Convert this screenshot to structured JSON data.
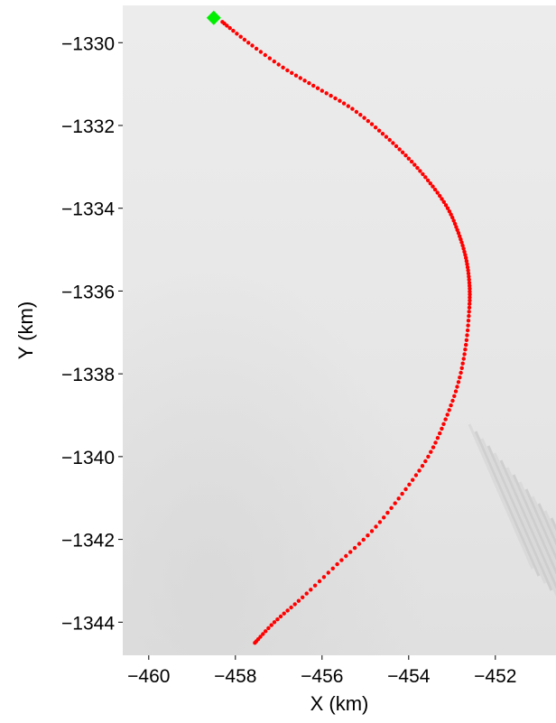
{
  "chart_data": {
    "type": "scatter",
    "xlabel": "X (km)",
    "ylabel": "Y (km)",
    "xlim": [
      -460.6,
      -450.6
    ],
    "ylim": [
      -1344.8,
      -1329.1
    ],
    "xticks": [
      -460,
      -458,
      -456,
      -454,
      -452
    ],
    "yticks": [
      -1330,
      -1332,
      -1334,
      -1336,
      -1338,
      -1340,
      -1342,
      -1344
    ],
    "xtick_labels": [
      "−460",
      "−458",
      "−456",
      "−454",
      "−452"
    ],
    "ytick_labels": [
      "−1330",
      "−1332",
      "−1334",
      "−1336",
      "−1338",
      "−1340",
      "−1342",
      "−1344"
    ],
    "grid": false,
    "background": "grayscale surface image",
    "series": [
      {
        "color": "#ff0000",
        "marker": "dot",
        "x": [
          -458.3,
          -457.7,
          -456.9,
          -456.1,
          -455.3,
          -454.6,
          -454.0,
          -453.5,
          -453.1,
          -452.85,
          -452.68,
          -452.6,
          -452.6,
          -452.68,
          -452.85,
          -453.15,
          -453.55,
          -454.15,
          -454.85,
          -455.65,
          -456.45,
          -457.1,
          -457.55
        ],
        "y": [
          -1329.5,
          -1330.0,
          -1330.6,
          -1331.1,
          -1331.6,
          -1332.2,
          -1332.8,
          -1333.4,
          -1334.0,
          -1334.6,
          -1335.2,
          -1335.8,
          -1336.4,
          -1337.3,
          -1338.2,
          -1339.1,
          -1340.0,
          -1340.9,
          -1341.8,
          -1342.6,
          -1343.4,
          -1344.0,
          -1344.5
        ]
      }
    ],
    "start_point": {
      "x": -458.5,
      "y": -1329.4,
      "color": "#00ee00"
    },
    "point_color": "#ff0000"
  }
}
